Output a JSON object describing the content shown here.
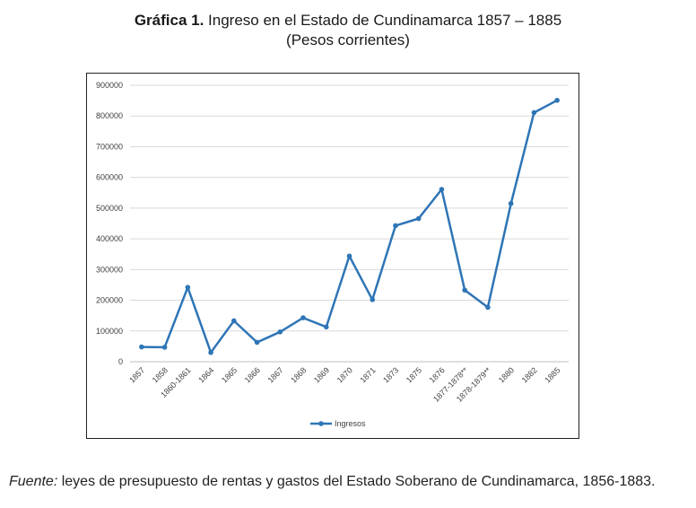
{
  "title_bold": "Gráfica 1.",
  "title_rest": " Ingreso en el Estado de Cundinamarca 1857 – 1885",
  "subtitle": "(Pesos corrientes)",
  "source_label": "Fuente:",
  "source_text": " leyes de presupuesto de rentas y gastos del Estado Soberano de Cundinamarca, 1856-1883.",
  "colors": {
    "series": "#2e75b6",
    "grid": "#d9d9d9",
    "axis": "#bfbfbf"
  },
  "chart_data": {
    "type": "line",
    "categories": [
      "1857",
      "1858",
      "1860-1861",
      "1864",
      "1865",
      "1866",
      "1867",
      "1868",
      "1869",
      "1870",
      "1871",
      "1873",
      "1875",
      "1876",
      "1877-1878**",
      "1878-1879**",
      "1880",
      "1882",
      "1885"
    ],
    "series": [
      {
        "name": "Ingresos",
        "values": [
          48000,
          47000,
          242000,
          30000,
          133000,
          63000,
          97000,
          143000,
          113000,
          344000,
          202000,
          443000,
          466000,
          561000,
          233000,
          177000,
          515000,
          811000,
          851000
        ]
      }
    ],
    "ylim": [
      0,
      900000
    ],
    "yticks": [
      "0",
      "100000",
      "200000",
      "300000",
      "400000",
      "500000",
      "600000",
      "700000",
      "800000",
      "900000"
    ],
    "grid": true,
    "legend": "bottom"
  }
}
